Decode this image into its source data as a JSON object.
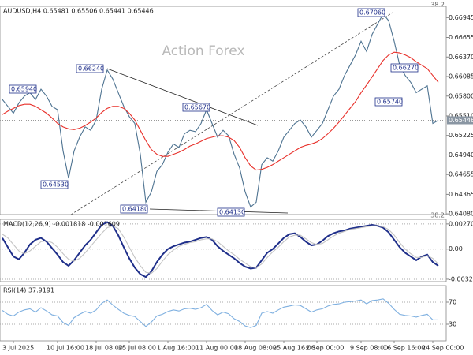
{
  "chart_data": [
    {
      "type": "line",
      "title": "AUDUSD,H4  0.65481 0.65506 0.65441 0.65446",
      "watermark": "Action Forex",
      "fib_label": "38.2",
      "categories": [
        null,
        null,
        "3 Jul 2025",
        null,
        null,
        null,
        null,
        null,
        null,
        null,
        "10 Jul 16:00",
        null,
        null,
        null,
        null,
        null,
        null,
        "18 Jul 08:00",
        null,
        null,
        null,
        null,
        null,
        "25 Jul 08:00",
        null,
        null,
        null,
        null,
        null,
        null,
        "1 Aug 16:00",
        null,
        null,
        null,
        null,
        null,
        null,
        "11 Aug 00:00",
        null,
        null,
        null,
        null,
        null,
        null,
        "18 Aug 08:00",
        null,
        null,
        null,
        null,
        null,
        null,
        "25 Aug 16:00",
        null,
        null,
        null,
        null,
        null,
        "2 Sep 00:00",
        null,
        null,
        null,
        null,
        null,
        null,
        null,
        "9 Sep 08:00",
        null,
        null,
        null,
        null,
        null,
        "16 Sep 16:00",
        null,
        null,
        null,
        null,
        null,
        null,
        "24 Sep 00:00",
        null
      ],
      "series": [
        {
          "color": "#4e7391",
          "values": [
            0.6575,
            0.6565,
            0.6555,
            0.657,
            0.658,
            0.6585,
            0.6575,
            0.659,
            0.658,
            0.6565,
            0.656,
            0.65,
            0.646,
            0.65,
            0.652,
            0.6535,
            0.653,
            0.6545,
            0.659,
            0.6618,
            0.6605,
            0.6585,
            0.6565,
            0.655,
            0.654,
            0.6495,
            0.6425,
            0.644,
            0.647,
            0.648,
            0.6498,
            0.651,
            0.6505,
            0.6525,
            0.653,
            0.6528,
            0.654,
            0.656,
            0.654,
            0.652,
            0.653,
            0.6522,
            0.6495,
            0.6475,
            0.644,
            0.6418,
            0.6425,
            0.648,
            0.649,
            0.6485,
            0.65,
            0.652,
            0.653,
            0.654,
            0.6545,
            0.6535,
            0.652,
            0.653,
            0.654,
            0.656,
            0.658,
            0.659,
            0.661,
            0.6625,
            0.664,
            0.666,
            0.6645,
            0.667,
            0.6685,
            0.67,
            0.669,
            0.666,
            0.6625,
            0.661,
            0.66,
            0.6585,
            0.659,
            0.6595,
            0.654,
            0.65446
          ]
        },
        {
          "color": "#e8302a",
          "values": [
            0.6553,
            0.6558,
            0.6562,
            0.6566,
            0.6568,
            0.6568,
            0.6565,
            0.656,
            0.6555,
            0.6548,
            0.654,
            0.6535,
            0.6532,
            0.6531,
            0.6533,
            0.6537,
            0.6542,
            0.6548,
            0.6556,
            0.6562,
            0.6565,
            0.6565,
            0.6562,
            0.6555,
            0.6545,
            0.653,
            0.6515,
            0.6502,
            0.6495,
            0.6492,
            0.6492,
            0.6495,
            0.6498,
            0.6502,
            0.6507,
            0.651,
            0.6514,
            0.6518,
            0.652,
            0.6522,
            0.6522,
            0.652,
            0.6515,
            0.6505,
            0.649,
            0.6478,
            0.6472,
            0.6473,
            0.6476,
            0.648,
            0.6485,
            0.649,
            0.6495,
            0.65,
            0.6505,
            0.6508,
            0.651,
            0.6513,
            0.6518,
            0.6525,
            0.6533,
            0.6542,
            0.6552,
            0.6562,
            0.6572,
            0.6585,
            0.6596,
            0.6608,
            0.662,
            0.6632,
            0.664,
            0.6644,
            0.6643,
            0.664,
            0.6636,
            0.663,
            0.6625,
            0.662,
            0.661,
            0.66
          ]
        }
      ],
      "ylim": [
        0.6407,
        0.6711
      ],
      "yticks": [
        0.66945,
        0.66655,
        {
          "value": 0.6637,
          "label": "0.66370"
        },
        0.66085,
        {
          "value": 0.658,
          "label": "0.65800"
        },
        {
          "value": 0.6551,
          "label": "0.65510"
        },
        0.65225,
        {
          "value": 0.6494,
          "label": "0.64940"
        },
        0.64655,
        0.64365,
        {
          "value": 0.6408,
          "label": "0.64080"
        }
      ],
      "last_price": 0.65446,
      "annotations": [
        "0.65940",
        "0.66240",
        "0.65670",
        "0.67060",
        "0.66270",
        "0.65740",
        "0.64530",
        "0.64180",
        "0.64130"
      ]
    },
    {
      "type": "line",
      "title": "MACD(12,26,9) -0.001818 -0.001609",
      "grid": true,
      "series": [
        {
          "color": "#1f2f8a",
          "values": [
            0.0012,
            0.0002,
            -0.0008,
            -0.0011,
            -0.0004,
            0.0005,
            0.001,
            0.0012,
            0.0008,
            0.0001,
            -0.0006,
            -0.0014,
            -0.0018,
            -0.0012,
            -0.0004,
            0.0004,
            0.001,
            0.0018,
            0.0026,
            0.0029,
            0.0025,
            0.0015,
            0.0002,
            -0.001,
            -0.002,
            -0.0027,
            -0.003,
            -0.0024,
            -0.0014,
            -0.0006,
            0,
            0.0003,
            0.0005,
            0.0007,
            0.0008,
            0.001,
            0.0012,
            0.0013,
            0.001,
            0.0003,
            -0.0002,
            -0.0006,
            -0.001,
            -0.0015,
            -0.0019,
            -0.0021,
            -0.002,
            -0.0012,
            -0.0004,
            0,
            0.0006,
            0.0012,
            0.0016,
            0.0017,
            0.0013,
            0.0008,
            0.0004,
            0.0005,
            0.0009,
            0.0014,
            0.0017,
            0.0019,
            0.002,
            0.0022,
            0.0023,
            0.0024,
            0.0025,
            0.0026,
            0.0025,
            0.0023,
            0.0018,
            0.001,
            0.0002,
            -0.0004,
            -0.0008,
            -0.0012,
            -0.0008,
            -0.0006,
            -0.0014,
            -0.0018
          ]
        },
        {
          "color": "#c4c4c4",
          "values": [
            0.0016,
            0.0012,
            0.0005,
            -0.0002,
            -0.0005,
            -0.0002,
            0.0003,
            0.0008,
            0.0009,
            0.0007,
            0.0002,
            -0.0005,
            -0.0011,
            -0.0013,
            -0.001,
            -0.0004,
            0.0003,
            0.001,
            0.0017,
            0.0023,
            0.0025,
            0.0022,
            0.0013,
            0.0002,
            -0.0009,
            -0.0018,
            -0.0025,
            -0.0026,
            -0.0021,
            -0.0013,
            -0.0006,
            -0.0001,
            0.0003,
            0.0005,
            0.0007,
            0.0008,
            0.001,
            0.0011,
            0.0011,
            0.0008,
            0.0003,
            -0.0002,
            -0.0006,
            -0.0011,
            -0.0015,
            -0.0019,
            -0.002,
            -0.0016,
            -0.0009,
            -0.0003,
            0.0002,
            0.0008,
            0.0013,
            0.0015,
            0.0015,
            0.0011,
            0.0007,
            0.0005,
            0.0006,
            0.001,
            0.0014,
            0.0017,
            0.0019,
            0.0021,
            0.0022,
            0.0023,
            0.0024,
            0.0025,
            0.0025,
            0.0024,
            0.0021,
            0.0015,
            0.0007,
            0,
            -0.0005,
            -0.0009,
            -0.0009,
            -0.0007,
            -0.001,
            -0.0016
          ]
        }
      ],
      "ylim": [
        -0.0035,
        0.0032
      ],
      "yticks": [
        0.002702,
        {
          "value": 0,
          "label": "0.00"
        },
        -0.003241
      ]
    },
    {
      "type": "line",
      "title": "RSI(14) 37.9191",
      "grid": true,
      "series": [
        {
          "color": "#7fb0e0",
          "values": [
            55,
            48,
            45,
            52,
            56,
            58,
            52,
            60,
            54,
            47,
            45,
            33,
            28,
            42,
            48,
            53,
            50,
            56,
            68,
            74,
            65,
            57,
            50,
            46,
            44,
            35,
            26,
            34,
            45,
            48,
            53,
            56,
            54,
            58,
            59,
            57,
            60,
            66,
            55,
            47,
            52,
            49,
            40,
            35,
            27,
            24,
            28,
            50,
            53,
            50,
            56,
            61,
            63,
            65,
            64,
            58,
            52,
            56,
            58,
            63,
            66,
            67,
            70,
            71,
            72,
            74,
            67,
            73,
            74,
            76,
            68,
            57,
            48,
            46,
            45,
            43,
            46,
            48,
            38,
            37.9191
          ]
        }
      ],
      "ylim": [
        0,
        100
      ],
      "yticks": [
        70,
        30
      ]
    }
  ]
}
